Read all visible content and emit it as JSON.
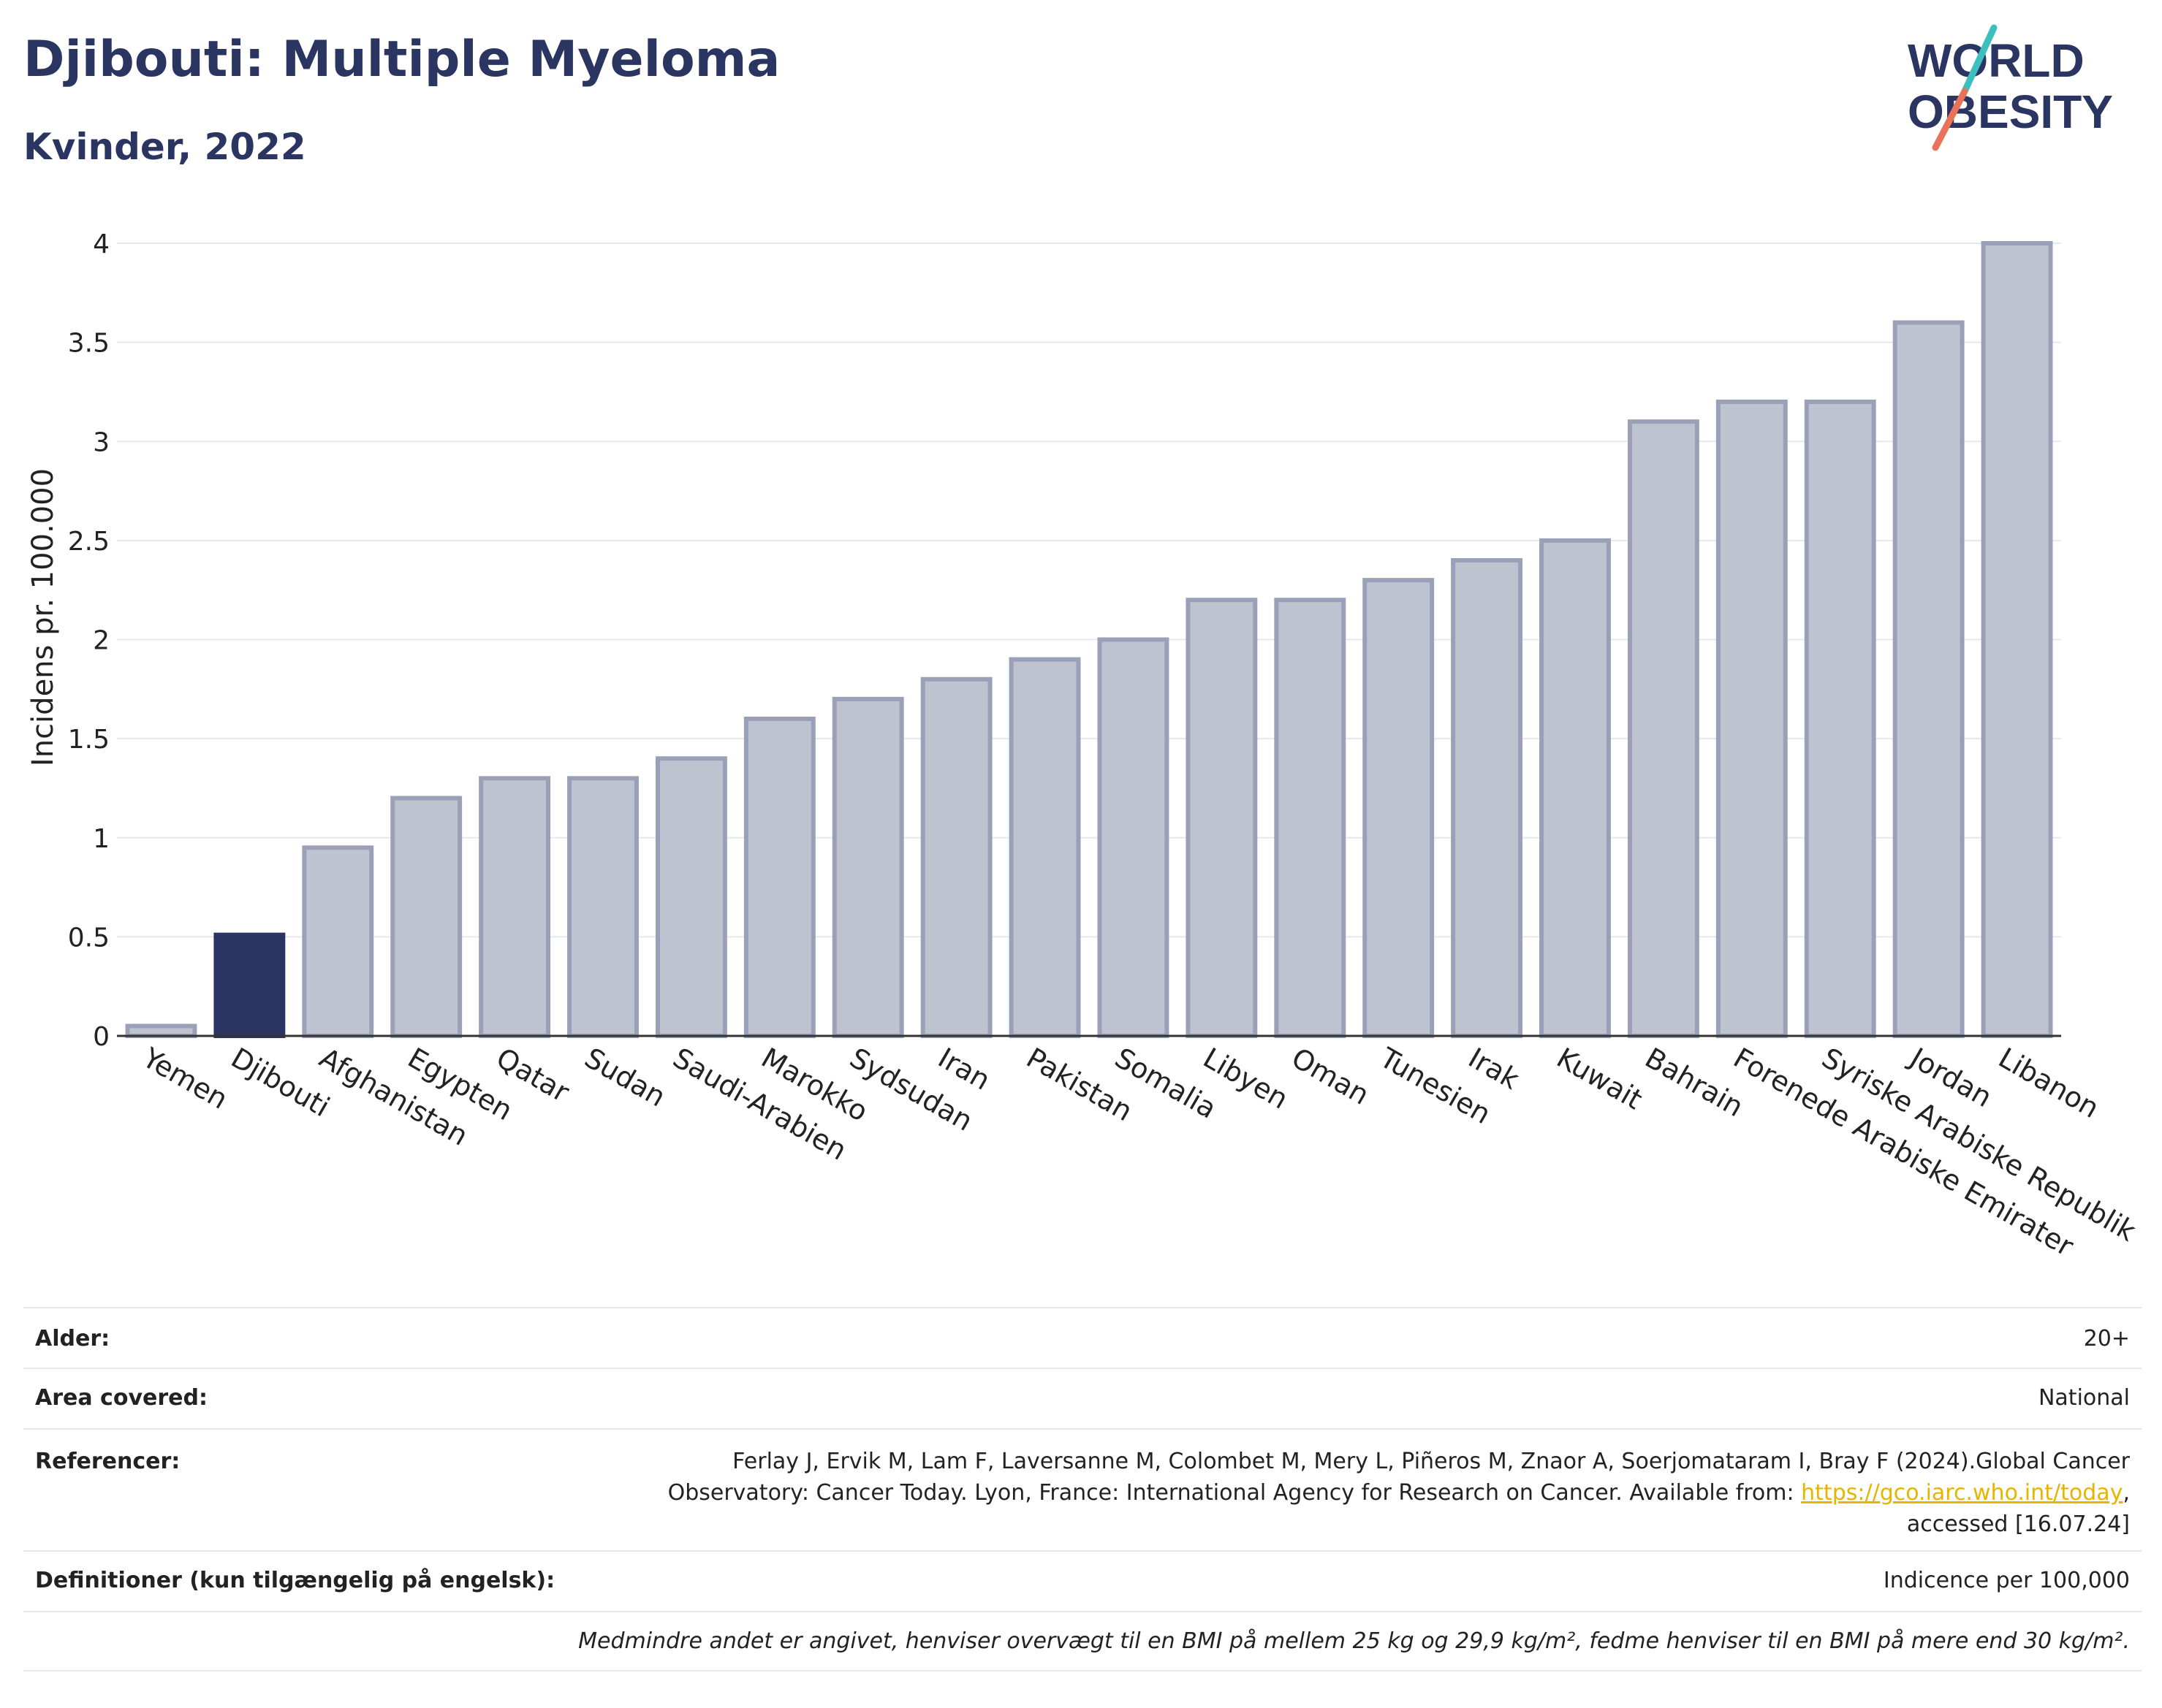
{
  "header": {
    "title": "Djibouti: Multiple Myeloma",
    "subtitle": "Kvinder, 2022"
  },
  "logo": {
    "line1": "WORLD",
    "line2": "OBESITY"
  },
  "colors": {
    "highlight": "#2a3561",
    "bar": "#bfc3d0",
    "bar_border": "#9aa0b8",
    "slash_teal": "#3bbfbf",
    "slash_coral": "#e8735a"
  },
  "chart_data": {
    "type": "bar",
    "categories": [
      "Yemen",
      "Djibouti",
      "Afghanistan",
      "Egypten",
      "Qatar",
      "Sudan",
      "Saudi-Arabien",
      "Marokko",
      "Sydsudan",
      "Iran",
      "Pakistan",
      "Somalia",
      "Libyen",
      "Oman",
      "Tunesien",
      "Irak",
      "Kuwait",
      "Bahrain",
      "Forenede Arabiske Emirater",
      "Syriske Arabiske Republik",
      "Jordan",
      "Libanon"
    ],
    "values": [
      0.05,
      0.51,
      0.95,
      1.2,
      1.3,
      1.3,
      1.4,
      1.6,
      1.7,
      1.8,
      1.9,
      2.0,
      2.2,
      2.2,
      2.3,
      2.4,
      2.5,
      3.1,
      3.2,
      3.2,
      3.6,
      4.0
    ],
    "highlight": "Djibouti",
    "ylabel": "Incidens pr. 100.000",
    "ylim": [
      0,
      4
    ],
    "yticks": [
      0,
      0.5,
      1,
      1.5,
      2,
      2.5,
      3,
      3.5,
      4
    ],
    "ytick_labels": [
      "0",
      "0.5",
      "1",
      "1.5",
      "2",
      "2.5",
      "3",
      "3.5",
      "4"
    ],
    "grid": true,
    "legend": "none"
  },
  "info": {
    "alder_label": "Alder:",
    "alder_value": "20+",
    "area_label": "Area covered:",
    "area_value": "National",
    "ref_label": "Referencer:",
    "ref_text": "Ferlay J, Ervik M, Lam F, Laversanne M, Colombet M, Mery L, Piñeros M, Znaor A, Soerjomataram I, Bray F (2024).Global Cancer Observatory: Cancer Today. Lyon, France: International Agency for Research on Cancer. Available from: ",
    "ref_link": "https://gco.iarc.who.int/today",
    "ref_tail": ", accessed [16.07.24]",
    "def_label": "Definitioner (kun tilgængelig på engelsk):",
    "def_value": "Indicence per 100,000",
    "note": "Medmindre andet er angivet, henviser overvægt til en BMI på mellem 25 kg og 29,9 kg/m², fedme henviser til en BMI på mere end 30 kg/m²."
  }
}
